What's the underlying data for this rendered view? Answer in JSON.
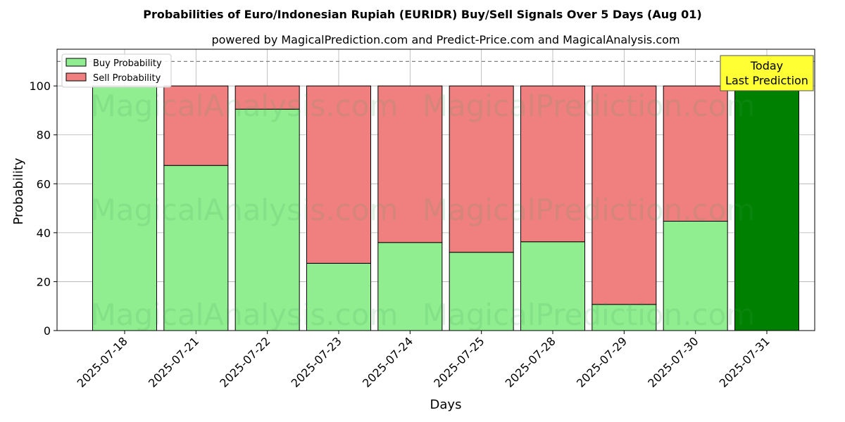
{
  "chart_data": {
    "type": "bar",
    "stacked": true,
    "title": "Probabilities of Euro/Indonesian Rupiah (EURIDR) Buy/Sell Signals Over 5 Days (Aug 01)",
    "subtitle": "powered by MagicalPrediction.com and Predict-Price.com and MagicalAnalysis.com",
    "xlabel": "Days",
    "ylabel": "Probability",
    "ylim": [
      0,
      115
    ],
    "yticks": [
      "0",
      "20",
      "40",
      "60",
      "80",
      "100"
    ],
    "reference_line": 110,
    "grid": true,
    "legend_position": "top-left",
    "categories": [
      "2025-07-18",
      "2025-07-21",
      "2025-07-22",
      "2025-07-23",
      "2025-07-24",
      "2025-07-25",
      "2025-07-28",
      "2025-07-29",
      "2025-07-30",
      "2025-07-31"
    ],
    "series": [
      {
        "name": "Buy Probability",
        "values": [
          100,
          67.5,
          90.5,
          27.5,
          36,
          32,
          36.3,
          10.7,
          44.7,
          100
        ]
      },
      {
        "name": "Sell Probability",
        "values": [
          0,
          32.5,
          9.5,
          72.5,
          64,
          68,
          63.7,
          89.3,
          55.3,
          0
        ]
      }
    ],
    "highlight_index": 9,
    "annotation": {
      "line1": "Today",
      "line2": "Last Prediction"
    },
    "watermarks": [
      "MagicalAnalysis.com",
      "MagicalPrediction.com"
    ],
    "colors": {
      "buy": "#90EE90",
      "sell": "#F08080",
      "highlight": "#008000",
      "annotation_bg": "#FFFF33",
      "grid": "#b0b0b0",
      "reference_line": "#808080"
    }
  }
}
